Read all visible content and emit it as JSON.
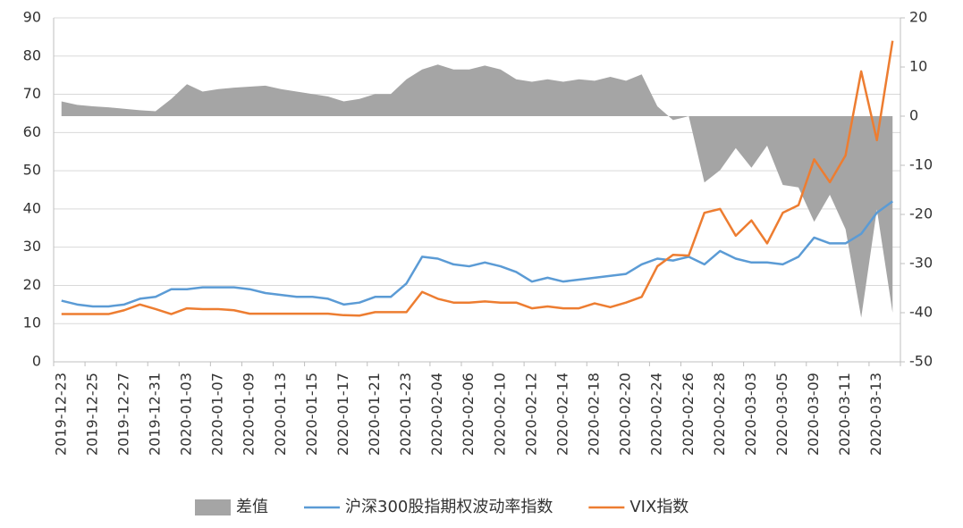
{
  "chart_data": {
    "type": "line",
    "categories": [
      "2019-12-23",
      null,
      "2019-12-25",
      null,
      "2019-12-27",
      null,
      "2019-12-31",
      null,
      "2020-01-03",
      null,
      "2020-01-07",
      null,
      "2020-01-09",
      null,
      "2020-01-13",
      null,
      "2020-01-15",
      null,
      "2020-01-17",
      null,
      "2020-01-21",
      null,
      "2020-01-23",
      null,
      "2020-02-04",
      null,
      "2020-02-06",
      null,
      "2020-02-10",
      null,
      "2020-02-12",
      null,
      "2020-02-14",
      null,
      "2020-02-18",
      null,
      "2020-02-20",
      null,
      "2020-02-24",
      null,
      "2020-02-26",
      null,
      "2020-02-28",
      null,
      "2020-03-03",
      null,
      "2020-03-05",
      null,
      "2020-03-09",
      null,
      "2020-03-11",
      null,
      "2020-03-13",
      null
    ],
    "series": [
      {
        "name": "差值",
        "type": "area",
        "axis": "y2",
        "color": "#a5a5a5",
        "values": [
          3,
          2.3,
          2,
          1.8,
          1.5,
          1.2,
          1,
          3.5,
          6.5,
          5,
          5.5,
          5.8,
          6,
          6.2,
          5.5,
          5,
          4.5,
          4,
          3,
          3.5,
          4.5,
          4.5,
          7.5,
          9.5,
          10.5,
          9.5,
          9.5,
          10.3,
          9.5,
          7.5,
          7,
          7.5,
          7,
          7.5,
          7.2,
          8,
          7.2,
          8.5,
          2,
          -0.8,
          0,
          -13.5,
          -11,
          -6.5,
          -10.5,
          -6,
          -14,
          -14.5,
          -21.5,
          -16,
          -23,
          -41,
          -19,
          -40
        ]
      },
      {
        "name": "沪深300股指期权波动率指数",
        "type": "line",
        "color": "#5b9bd5",
        "values": [
          16,
          15,
          14.5,
          14.5,
          15,
          16.5,
          17,
          19,
          19,
          19.5,
          19.5,
          19.5,
          19,
          18,
          17.5,
          17,
          17,
          16.5,
          15,
          15.5,
          17,
          17,
          20.5,
          27.5,
          27,
          25.5,
          25,
          26,
          25,
          23.5,
          21,
          22,
          21,
          21.5,
          22,
          22.5,
          23,
          25.5,
          27,
          26.5,
          27.5,
          25.5,
          29,
          27,
          26,
          26,
          25.5,
          27.5,
          32.5,
          31,
          31,
          33.5,
          39,
          42
        ]
      },
      {
        "name": "VIX指数",
        "type": "line",
        "color": "#ed7d31",
        "values": [
          12.5,
          12.5,
          12.5,
          12.5,
          13.5,
          15,
          13.8,
          12.5,
          14,
          13.8,
          13.8,
          13.5,
          12.6,
          12.6,
          12.6,
          12.6,
          12.6,
          12.6,
          12.2,
          12.1,
          13,
          13,
          13,
          18.3,
          16.5,
          15.5,
          15.5,
          15.8,
          15.5,
          15.5,
          14,
          14.5,
          14,
          14,
          15.3,
          14.3,
          15.5,
          17,
          25,
          28,
          27.8,
          39,
          40,
          33,
          37,
          31,
          39,
          41,
          53,
          47,
          54,
          76,
          58,
          84
        ]
      }
    ],
    "ylim": [
      0,
      90
    ],
    "yticks": [
      0,
      10,
      20,
      30,
      40,
      50,
      60,
      70,
      80,
      90
    ],
    "y2lim": [
      -50,
      20
    ],
    "y2ticks": [
      -50,
      -40,
      -30,
      -20,
      -10,
      0,
      10,
      20
    ],
    "grid": true,
    "legend": "bottom"
  }
}
